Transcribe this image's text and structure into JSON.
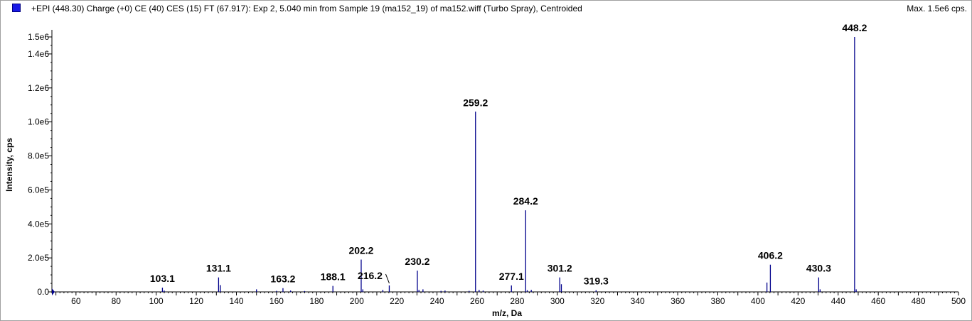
{
  "header": {
    "title": "+EPI (448.30) Charge (+0) CE (40) CES (15) FT (67.917): Exp 2, 5.040 min from Sample 19 (ma152_19) of ma152.wiff (Turbo Spray), Centroided",
    "max": "Max. 1.5e6 cps."
  },
  "colors": {
    "series": "#00008b",
    "swatch": "#1a1ae6",
    "axis": "#000000"
  },
  "chart_data": {
    "type": "bar",
    "title": "+EPI (448.30) Charge (+0) CE (40) CES (15) FT (67.917): Exp 2, 5.040 min from Sample 19 (ma152_19) of ma152.wiff (Turbo Spray), Centroided",
    "xlabel": "m/z, Da",
    "ylabel": "Intensity, cps",
    "xlim": [
      48,
      500
    ],
    "ylim": [
      0,
      1500000
    ],
    "xticks": [
      "60",
      "80",
      "100",
      "120",
      "140",
      "160",
      "180",
      "200",
      "220",
      "240",
      "260",
      "280",
      "300",
      "320",
      "340",
      "360",
      "380",
      "400",
      "420",
      "440",
      "460",
      "480",
      "500"
    ],
    "yticks": [
      {
        "value": 0,
        "label": "0.0"
      },
      {
        "value": 200000,
        "label": "2.0e5"
      },
      {
        "value": 400000,
        "label": "4.0e5"
      },
      {
        "value": 600000,
        "label": "6.0e5"
      },
      {
        "value": 800000,
        "label": "8.0e5"
      },
      {
        "value": 1000000,
        "label": "1.0e6"
      },
      {
        "value": 1200000,
        "label": "1.2e6"
      },
      {
        "value": 1400000,
        "label": "1.4e6"
      },
      {
        "value": 1500000,
        "label": "1.5e6"
      }
    ],
    "labeled_peaks": [
      {
        "mz": 103.1,
        "intensity": 25000,
        "label": "103.1"
      },
      {
        "mz": 131.1,
        "intensity": 85000,
        "label": "131.1"
      },
      {
        "mz": 163.2,
        "intensity": 22000,
        "label": "163.2"
      },
      {
        "mz": 188.1,
        "intensity": 35000,
        "label": "188.1"
      },
      {
        "mz": 202.2,
        "intensity": 190000,
        "label": "202.2"
      },
      {
        "mz": 216.2,
        "intensity": 38000,
        "label": "216.2"
      },
      {
        "mz": 230.2,
        "intensity": 125000,
        "label": "230.2"
      },
      {
        "mz": 259.2,
        "intensity": 1060000,
        "label": "259.2"
      },
      {
        "mz": 277.1,
        "intensity": 38000,
        "label": "277.1"
      },
      {
        "mz": 284.2,
        "intensity": 480000,
        "label": "284.2"
      },
      {
        "mz": 301.2,
        "intensity": 85000,
        "label": "301.2"
      },
      {
        "mz": 319.3,
        "intensity": 10000,
        "label": "319.3"
      },
      {
        "mz": 406.2,
        "intensity": 160000,
        "label": "406.2"
      },
      {
        "mz": 430.3,
        "intensity": 85000,
        "label": "430.3"
      },
      {
        "mz": 448.2,
        "intensity": 1500000,
        "label": "448.2"
      }
    ],
    "minor_peaks": [
      {
        "mz": 104,
        "intensity": 8000
      },
      {
        "mz": 132,
        "intensity": 40000
      },
      {
        "mz": 150,
        "intensity": 15000
      },
      {
        "mz": 160,
        "intensity": 6000
      },
      {
        "mz": 167,
        "intensity": 8000
      },
      {
        "mz": 174,
        "intensity": 5000
      },
      {
        "mz": 203,
        "intensity": 15000
      },
      {
        "mz": 213,
        "intensity": 12000
      },
      {
        "mz": 231,
        "intensity": 12000
      },
      {
        "mz": 233,
        "intensity": 15000
      },
      {
        "mz": 242,
        "intensity": 6000
      },
      {
        "mz": 244,
        "intensity": 8000
      },
      {
        "mz": 256,
        "intensity": 6000
      },
      {
        "mz": 261,
        "intensity": 12000
      },
      {
        "mz": 263,
        "intensity": 8000
      },
      {
        "mz": 285,
        "intensity": 10000
      },
      {
        "mz": 287,
        "intensity": 12000
      },
      {
        "mz": 302,
        "intensity": 45000
      },
      {
        "mz": 404.5,
        "intensity": 55000
      },
      {
        "mz": 431,
        "intensity": 15000
      },
      {
        "mz": 449,
        "intensity": 15000
      }
    ]
  }
}
